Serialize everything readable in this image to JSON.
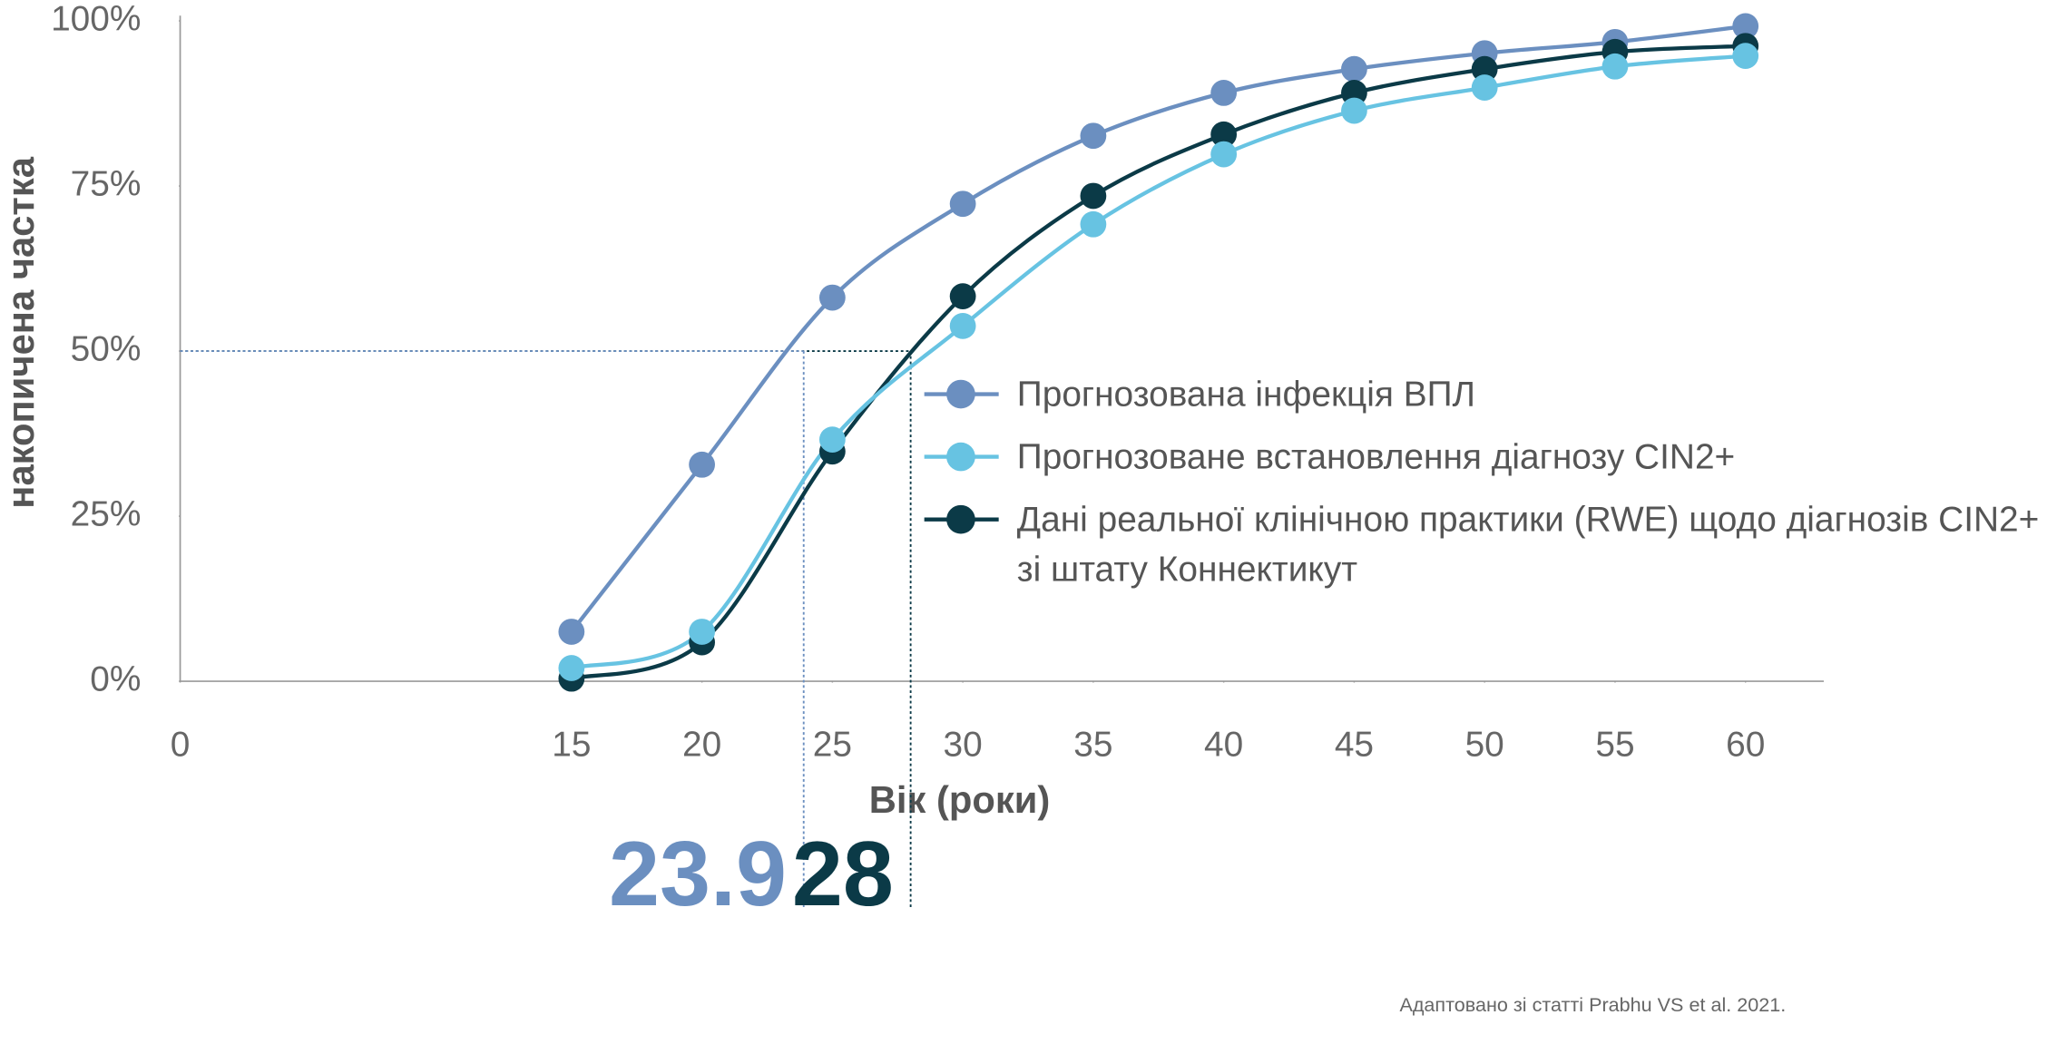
{
  "chart_data": {
    "type": "line",
    "y_label": "накопичена частка",
    "x_label": "Вік (роки)",
    "source": "Адаптовано зі статті Prabhu VS et al. 2021.",
    "x": [
      15,
      20,
      25,
      30,
      35,
      40,
      45,
      50,
      55,
      60
    ],
    "series": [
      {
        "name": "Прогнозована інфекція ВПЛ",
        "color": "#6b8fc0",
        "values": [
          7.5,
          32.8,
          58.1,
          72.3,
          82.6,
          89.1,
          92.7,
          95.1,
          96.8,
          99.2
        ]
      },
      {
        "name": "Прогнозоване встановлення діагнозу CIN2+",
        "color": "#67c3e2",
        "values": [
          2.0,
          7.5,
          36.6,
          53.8,
          69.2,
          79.8,
          86.4,
          89.9,
          93.1,
          94.7
        ]
      },
      {
        "name": "Дані реальної клінічною практики (RWE) щодо діагнозів CIN2+ зі штату Коннектикут",
        "color": "#0b3a47",
        "values": [
          0.4,
          5.9,
          34.8,
          58.3,
          73.5,
          82.8,
          89.1,
          92.7,
          95.3,
          96.2
        ]
      }
    ],
    "reference_lines": [
      {
        "x": 23.9,
        "y": 50,
        "color": "#6b8fc0"
      },
      {
        "x": 28,
        "y": 50,
        "color": "#0b3a47"
      }
    ],
    "xlim": [
      0,
      63
    ],
    "ylim": [
      0,
      100
    ],
    "xticks": [
      0,
      15,
      20,
      25,
      30,
      35,
      40,
      45,
      50,
      55,
      60
    ],
    "yticks": [
      {
        "value": 0,
        "label": "0%"
      },
      {
        "value": 25,
        "label": "25%"
      },
      {
        "value": 50,
        "label": "50%"
      },
      {
        "value": 75,
        "label": "75%"
      },
      {
        "value": 100,
        "label": "100%"
      }
    ],
    "grid": false
  }
}
